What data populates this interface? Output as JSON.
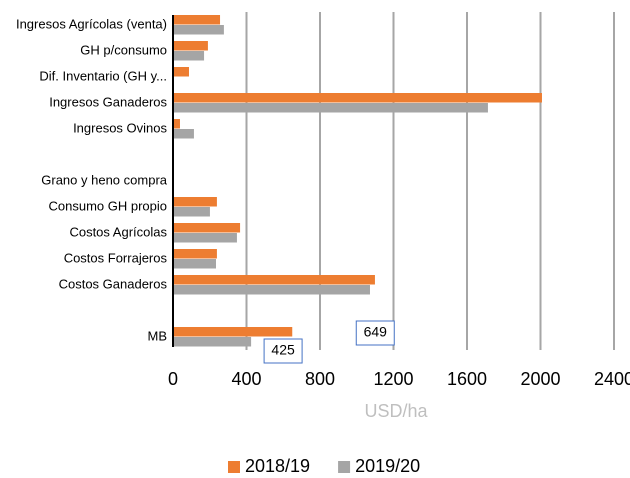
{
  "chart_data": {
    "type": "barh",
    "categories": [
      "Ingresos Agrícolas (venta)",
      "GH p/consumo",
      "Dif. Inventario (GH y...",
      "Ingresos Ganaderos",
      "Ingresos Ovinos",
      null,
      "Grano y heno compra",
      "Consumo GH propio",
      "Costos Agrícolas",
      "Costos Forrajeros",
      "Costos Ganaderos",
      null,
      "MB"
    ],
    "series": [
      {
        "name": "2018/19",
        "color": "#ed7d31",
        "values": [
          256,
          190,
          87,
          2008,
          38,
          null,
          null,
          239,
          365,
          239,
          1099,
          null,
          649
        ]
      },
      {
        "name": "2019/20",
        "color": "#a5a5a5",
        "values": [
          277,
          169,
          null,
          1714,
          114,
          null,
          null,
          201,
          348,
          234,
          1072,
          null,
          425
        ]
      }
    ],
    "xlabel": "USD/ha",
    "xlim": [
      0,
      2400
    ],
    "xticks": [
      0,
      400,
      800,
      1200,
      1600,
      2000,
      2400
    ],
    "grid": true,
    "legend": "bottom"
  }
}
